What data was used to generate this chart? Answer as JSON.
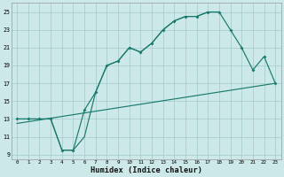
{
  "xlabel": "Humidex (Indice chaleur)",
  "bg_color": "#cce8e8",
  "line_color": "#1a7a6e",
  "grid_color": "#aacece",
  "xlim": [
    -0.5,
    23.5
  ],
  "ylim": [
    8.5,
    26
  ],
  "yticks": [
    9,
    11,
    13,
    15,
    17,
    19,
    21,
    23,
    25
  ],
  "series1_x": [
    0,
    1,
    2,
    3,
    4,
    5,
    6,
    7,
    8,
    9,
    10,
    11,
    12,
    13,
    14,
    15,
    16,
    17,
    18,
    19,
    20,
    21,
    22,
    23
  ],
  "series1_y": [
    13,
    13,
    13,
    13,
    9.5,
    9.5,
    14,
    16,
    19,
    19.5,
    21,
    20.5,
    21.5,
    23,
    24,
    24.5,
    24.5,
    25,
    25,
    23,
    21,
    18.5,
    20,
    17
  ],
  "series2_x": [
    0,
    2,
    3,
    4,
    5,
    6,
    7,
    8,
    9,
    10,
    11,
    12,
    13,
    14,
    15,
    16,
    17,
    18
  ],
  "series2_y": [
    13,
    13,
    13,
    9.5,
    9.5,
    11,
    16,
    19,
    19.5,
    21,
    20.5,
    21.5,
    23,
    24,
    24.5,
    24.5,
    25,
    25
  ],
  "series3_x": [
    0,
    23
  ],
  "series3_y": [
    12.5,
    17
  ]
}
